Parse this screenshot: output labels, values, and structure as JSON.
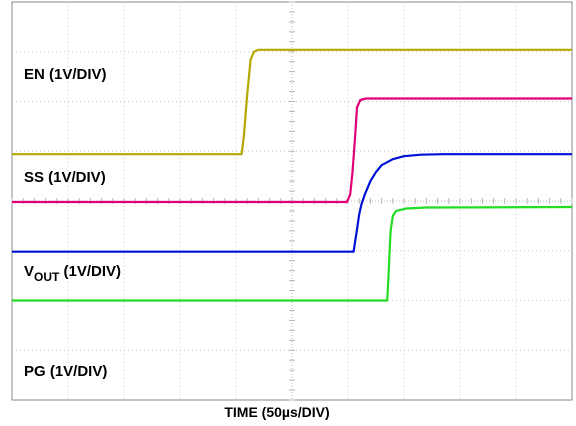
{
  "chart_data": {
    "type": "line",
    "xlabel": "TIME (50µs/DIV)",
    "x_unit": "µs",
    "x_per_div": 50,
    "y_per_div_volts": 1,
    "grid": true,
    "divisions": {
      "x": 10,
      "y": 8
    },
    "series": [
      {
        "label_main": "EN (1V/DIV)",
        "label_sub": "",
        "label_rest": "",
        "color": "#b5a800",
        "zero_div": 3.06,
        "points": [
          [
            0,
            0
          ],
          [
            205,
            0
          ],
          [
            207,
            0.35
          ],
          [
            210,
            1.2
          ],
          [
            213,
            1.9
          ],
          [
            216,
            2.06
          ],
          [
            220,
            2.1
          ],
          [
            500,
            2.1
          ]
        ]
      },
      {
        "label_main": "SS (1V/DIV)",
        "label_sub": "",
        "label_rest": "",
        "color": "#e0007a",
        "zero_div": 4.02,
        "points": [
          [
            0,
            0
          ],
          [
            299,
            0
          ],
          [
            302,
            0.15
          ],
          [
            304,
            0.6
          ],
          [
            306,
            1.2
          ],
          [
            308,
            1.9
          ],
          [
            311,
            2.05
          ],
          [
            316,
            2.08
          ],
          [
            500,
            2.08
          ]
        ]
      },
      {
        "label_main": "V",
        "label_sub": "OUT",
        "label_rest": " (1V/DIV)",
        "color": "#0012d8",
        "zero_div": 5.02,
        "points": [
          [
            0,
            0
          ],
          [
            305,
            0
          ],
          [
            306,
            0.15
          ],
          [
            308,
            0.45
          ],
          [
            310,
            0.75
          ],
          [
            312,
            0.95
          ],
          [
            315,
            1.15
          ],
          [
            320,
            1.42
          ],
          [
            325,
            1.6
          ],
          [
            330,
            1.74
          ],
          [
            340,
            1.86
          ],
          [
            350,
            1.92
          ],
          [
            365,
            1.95
          ],
          [
            385,
            1.96
          ],
          [
            500,
            1.96
          ]
        ]
      },
      {
        "label_main": "PG (1V/DIV)",
        "label_sub": "",
        "label_rest": "",
        "color": "#22dd22",
        "zero_div": 6.0,
        "points": [
          [
            0,
            0
          ],
          [
            335,
            0
          ],
          [
            336,
            0.4
          ],
          [
            337,
            0.9
          ],
          [
            338,
            1.4
          ],
          [
            340,
            1.7
          ],
          [
            343,
            1.8
          ],
          [
            352,
            1.85
          ],
          [
            370,
            1.87
          ],
          [
            500,
            1.88
          ]
        ]
      }
    ]
  }
}
